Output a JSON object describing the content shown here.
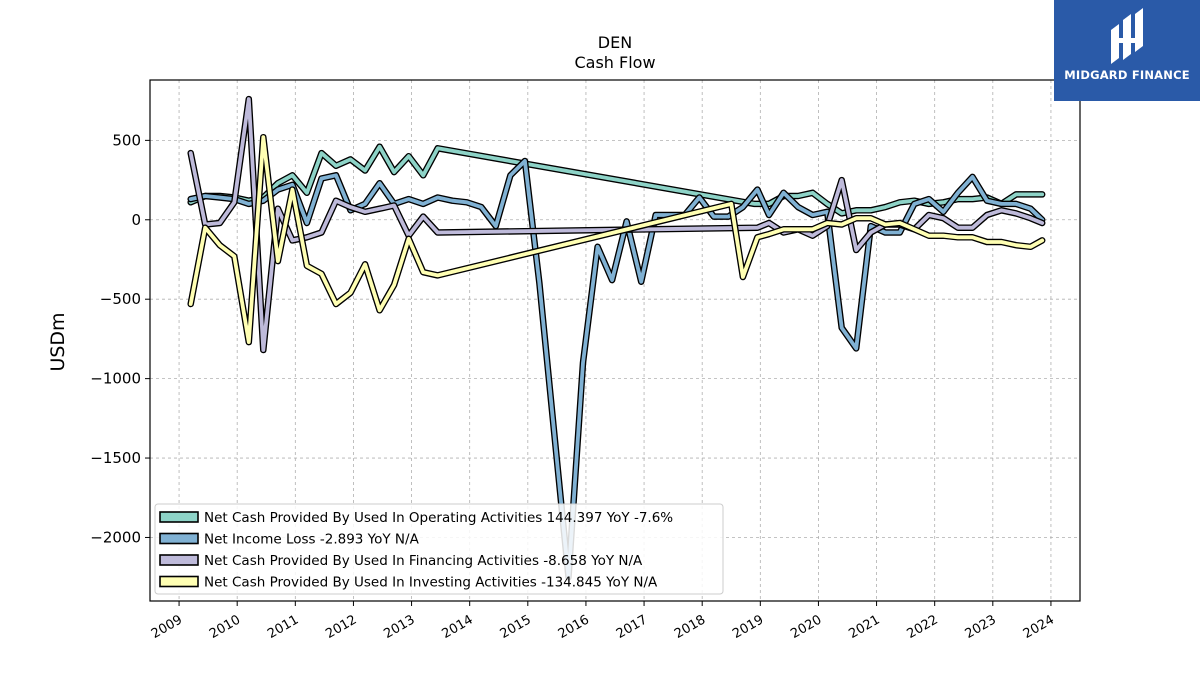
{
  "chart_data": {
    "type": "line",
    "title": "DEN",
    "subtitle": "Cash Flow",
    "ylabel": "USDm",
    "xlabel": "",
    "ylim": [
      -2400,
      880
    ],
    "xlim": [
      2008.5,
      2024.5
    ],
    "yticks": [
      500,
      0,
      -500,
      -1000,
      -1500,
      -2000
    ],
    "ytick_labels": [
      "500",
      "0",
      "−500",
      "−1000",
      "−1500",
      "−2000"
    ],
    "xticks": [
      2009,
      2010,
      2011,
      2012,
      2013,
      2014,
      2015,
      2016,
      2017,
      2018,
      2019,
      2020,
      2021,
      2022,
      2023,
      2024
    ],
    "xtick_labels": [
      "2009",
      "2010",
      "2011",
      "2012",
      "2013",
      "2014",
      "2015",
      "2016",
      "2017",
      "2018",
      "2019",
      "2020",
      "2021",
      "2022",
      "2023",
      "2024"
    ],
    "grid": true,
    "legend_position": "bottom-left",
    "series": [
      {
        "name": "Net Cash Provided By Used In Operating Activities  144.397 YoY -7.6%",
        "color": "#8dd3c7",
        "points": [
          [
            2009.2,
            110
          ],
          [
            2009.45,
            150
          ],
          [
            2009.7,
            150
          ],
          [
            2009.95,
            140
          ],
          [
            2010.2,
            120
          ],
          [
            2010.45,
            140
          ],
          [
            2010.7,
            230
          ],
          [
            2010.95,
            280
          ],
          [
            2011.2,
            170
          ],
          [
            2011.45,
            420
          ],
          [
            2011.7,
            340
          ],
          [
            2011.95,
            380
          ],
          [
            2012.2,
            310
          ],
          [
            2012.45,
            460
          ],
          [
            2012.7,
            300
          ],
          [
            2012.95,
            400
          ],
          [
            2013.2,
            280
          ],
          [
            2013.45,
            450
          ],
          [
            2018.9,
            100
          ],
          [
            2019.15,
            100
          ],
          [
            2019.4,
            150
          ],
          [
            2019.65,
            150
          ],
          [
            2019.9,
            170
          ],
          [
            2020.15,
            100
          ],
          [
            2020.4,
            40
          ],
          [
            2020.65,
            60
          ],
          [
            2020.9,
            60
          ],
          [
            2021.15,
            80
          ],
          [
            2021.4,
            110
          ],
          [
            2021.65,
            120
          ],
          [
            2021.9,
            100
          ],
          [
            2022.15,
            110
          ],
          [
            2022.4,
            130
          ],
          [
            2022.65,
            130
          ],
          [
            2022.9,
            140
          ],
          [
            2023.15,
            100
          ],
          [
            2023.4,
            160
          ],
          [
            2023.65,
            160
          ],
          [
            2023.85,
            160
          ]
        ]
      },
      {
        "name": "Net Income Loss  -2.893 YoY N/A",
        "color": "#80b1d3",
        "points": [
          [
            2009.2,
            130
          ],
          [
            2009.45,
            150
          ],
          [
            2009.7,
            140
          ],
          [
            2009.95,
            130
          ],
          [
            2010.2,
            100
          ],
          [
            2010.45,
            120
          ],
          [
            2010.7,
            190
          ],
          [
            2010.95,
            220
          ],
          [
            2011.2,
            -20
          ],
          [
            2011.45,
            260
          ],
          [
            2011.7,
            280
          ],
          [
            2011.95,
            60
          ],
          [
            2012.2,
            100
          ],
          [
            2012.45,
            230
          ],
          [
            2012.7,
            100
          ],
          [
            2012.95,
            130
          ],
          [
            2013.2,
            100
          ],
          [
            2013.45,
            140
          ],
          [
            2013.7,
            120
          ],
          [
            2013.95,
            110
          ],
          [
            2014.2,
            80
          ],
          [
            2014.45,
            -40
          ],
          [
            2014.7,
            280
          ],
          [
            2014.95,
            370
          ],
          [
            2015.2,
            -400
          ],
          [
            2015.7,
            -2250
          ],
          [
            2015.95,
            -900
          ],
          [
            2016.2,
            -170
          ],
          [
            2016.45,
            -380
          ],
          [
            2016.7,
            -10
          ],
          [
            2016.95,
            -390
          ],
          [
            2017.2,
            30
          ],
          [
            2017.45,
            30
          ],
          [
            2017.7,
            30
          ],
          [
            2017.95,
            140
          ],
          [
            2018.2,
            20
          ],
          [
            2018.45,
            20
          ],
          [
            2018.7,
            80
          ],
          [
            2018.95,
            190
          ],
          [
            2019.15,
            30
          ],
          [
            2019.4,
            170
          ],
          [
            2019.65,
            80
          ],
          [
            2019.9,
            30
          ],
          [
            2020.15,
            50
          ],
          [
            2020.4,
            -680
          ],
          [
            2020.65,
            -810
          ],
          [
            2020.9,
            -40
          ],
          [
            2021.15,
            -80
          ],
          [
            2021.4,
            -80
          ],
          [
            2021.65,
            100
          ],
          [
            2021.9,
            130
          ],
          [
            2022.15,
            50
          ],
          [
            2022.4,
            170
          ],
          [
            2022.65,
            270
          ],
          [
            2022.9,
            120
          ],
          [
            2023.15,
            100
          ],
          [
            2023.4,
            100
          ],
          [
            2023.65,
            70
          ],
          [
            2023.85,
            0
          ]
        ]
      },
      {
        "name": "Net Cash Provided By Used In Financing Activities  -8.658 YoY N/A",
        "color": "#bebada",
        "points": [
          [
            2009.2,
            420
          ],
          [
            2009.45,
            -30
          ],
          [
            2009.7,
            -20
          ],
          [
            2009.95,
            110
          ],
          [
            2010.2,
            760
          ],
          [
            2010.45,
            -820
          ],
          [
            2010.7,
            70
          ],
          [
            2010.95,
            -130
          ],
          [
            2011.2,
            -110
          ],
          [
            2011.45,
            -80
          ],
          [
            2011.7,
            120
          ],
          [
            2011.95,
            80
          ],
          [
            2012.2,
            50
          ],
          [
            2012.45,
            70
          ],
          [
            2012.7,
            90
          ],
          [
            2012.95,
            -100
          ],
          [
            2013.2,
            20
          ],
          [
            2013.45,
            -80
          ],
          [
            2018.95,
            -50
          ],
          [
            2019.15,
            -20
          ],
          [
            2019.4,
            -80
          ],
          [
            2019.65,
            -60
          ],
          [
            2019.9,
            -100
          ],
          [
            2020.15,
            -40
          ],
          [
            2020.4,
            250
          ],
          [
            2020.65,
            -190
          ],
          [
            2020.9,
            -80
          ],
          [
            2021.15,
            -30
          ],
          [
            2021.4,
            -30
          ],
          [
            2021.65,
            -60
          ],
          [
            2021.9,
            30
          ],
          [
            2022.15,
            10
          ],
          [
            2022.4,
            -50
          ],
          [
            2022.65,
            -50
          ],
          [
            2022.9,
            30
          ],
          [
            2023.15,
            60
          ],
          [
            2023.4,
            40
          ],
          [
            2023.65,
            10
          ],
          [
            2023.85,
            -20
          ]
        ]
      },
      {
        "name": "Net Cash Provided By Used In Investing Activities  -134.845 YoY N/A",
        "color": "#ffffb3",
        "points": [
          [
            2009.2,
            -530
          ],
          [
            2009.45,
            -50
          ],
          [
            2009.7,
            -160
          ],
          [
            2009.95,
            -230
          ],
          [
            2010.2,
            -770
          ],
          [
            2010.45,
            520
          ],
          [
            2010.7,
            -260
          ],
          [
            2010.95,
            190
          ],
          [
            2011.2,
            -290
          ],
          [
            2011.45,
            -340
          ],
          [
            2011.7,
            -530
          ],
          [
            2011.95,
            -460
          ],
          [
            2012.2,
            -280
          ],
          [
            2012.45,
            -570
          ],
          [
            2012.7,
            -410
          ],
          [
            2012.95,
            -120
          ],
          [
            2013.2,
            -330
          ],
          [
            2013.45,
            -350
          ],
          [
            2018.5,
            100
          ],
          [
            2018.7,
            -360
          ],
          [
            2018.95,
            -110
          ],
          [
            2019.15,
            -90
          ],
          [
            2019.4,
            -60
          ],
          [
            2019.65,
            -60
          ],
          [
            2019.9,
            -60
          ],
          [
            2020.15,
            -20
          ],
          [
            2020.4,
            -30
          ],
          [
            2020.65,
            10
          ],
          [
            2020.9,
            10
          ],
          [
            2021.15,
            -30
          ],
          [
            2021.4,
            -20
          ],
          [
            2021.65,
            -60
          ],
          [
            2021.9,
            -100
          ],
          [
            2022.15,
            -100
          ],
          [
            2022.4,
            -110
          ],
          [
            2022.65,
            -110
          ],
          [
            2022.9,
            -140
          ],
          [
            2023.15,
            -140
          ],
          [
            2023.4,
            -160
          ],
          [
            2023.65,
            -170
          ],
          [
            2023.85,
            -130
          ]
        ]
      }
    ]
  },
  "logo": {
    "text": "MIDGARD FINANCE",
    "background": "#2a5aa8"
  }
}
